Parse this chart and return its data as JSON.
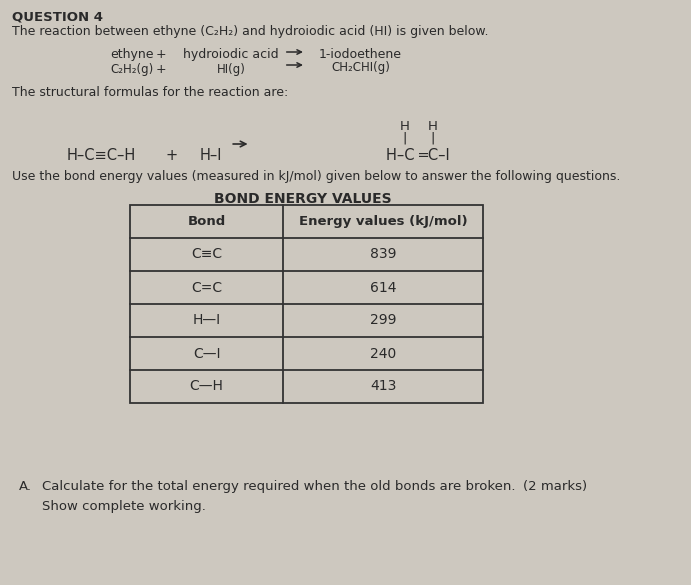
{
  "bg_color": "#cdc8bf",
  "text_color": "#2a2a2a",
  "title": "QUESTION 4",
  "intro": "The reaction between ethyne (C₂H₂) and hydroiodic acid (HI) is given below.",
  "rxn_ethyne": "ethyne",
  "rxn_plus1": "+",
  "rxn_hiacid": "hydroiodic acid",
  "rxn_1iodo": "1-iodoethene",
  "rxn_ch2chi": "CH₂CHI",
  "rxn_c2h2": "C₂H₂",
  "rxn_hi": "HI",
  "sub_g": "(g)",
  "struct_intro": "The structural formulas for the reaction are:",
  "struct_left": "H–C≡C–H",
  "struct_plus": "+",
  "struct_hi": "H–I",
  "struct_right_main": "H–C ═C–I",
  "struct_H1": "H",
  "struct_H2": "H",
  "bond_title": "BOND ENERGY VALUES",
  "bond_header_1": "Bond",
  "bond_header_2": "Energy values (kJ/mol)",
  "bond_rows": [
    [
      "C≡C",
      "839"
    ],
    [
      "C=C",
      "614"
    ],
    [
      "H—I",
      "299"
    ],
    [
      "C—I",
      "240"
    ],
    [
      "C—H",
      "413"
    ]
  ],
  "qa_letter": "A.",
  "qa_text": "Calculate for the total energy required when the old bonds are broken.",
  "qa_marks": "(2 marks)",
  "qa_sub": "Show complete working."
}
